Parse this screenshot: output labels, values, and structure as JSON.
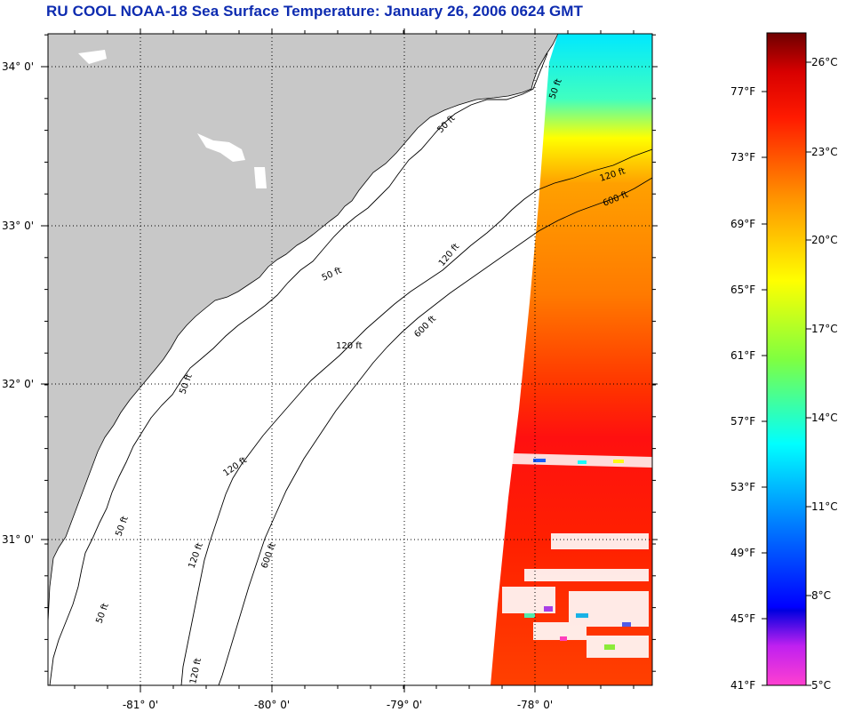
{
  "title": "RU COOL  NOAA-18  Sea Surface Temperature:  January 26, 2006 0624 GMT",
  "map": {
    "lat_labels": [
      "34° 0'",
      "33° 0'",
      "32° 0'",
      "31° 0'"
    ],
    "lon_labels": [
      "-81° 0'",
      "-80° 0'",
      "-79° 0'",
      "-78° 0'"
    ],
    "contour_labels": {
      "c50": "50 ft",
      "c120": "120 ft",
      "c600": "600 ft"
    }
  },
  "colorbar": {
    "celsius_labels": [
      "26°C",
      "23°C",
      "20°C",
      "17°C",
      "14°C",
      "11°C",
      "8°C",
      "5°C"
    ],
    "fahrenheit_labels": [
      "77°F",
      "73°F",
      "69°F",
      "65°F",
      "61°F",
      "57°F",
      "53°F",
      "49°F",
      "45°F",
      "41°F"
    ],
    "colors": {
      "top": "#6e0000",
      "red": "#ff1a00",
      "orange": "#ff8c00",
      "yellow": "#ffff00",
      "green": "#7fff40",
      "cyan": "#00ffff",
      "blue": "#0050ff",
      "darkblue": "#0000e0",
      "purple": "#a000ff",
      "magenta": "#ff40d0"
    }
  },
  "colors": {
    "land": "#c8c8c8",
    "ocean": "#ffffff",
    "title": "#0d2bb0"
  }
}
